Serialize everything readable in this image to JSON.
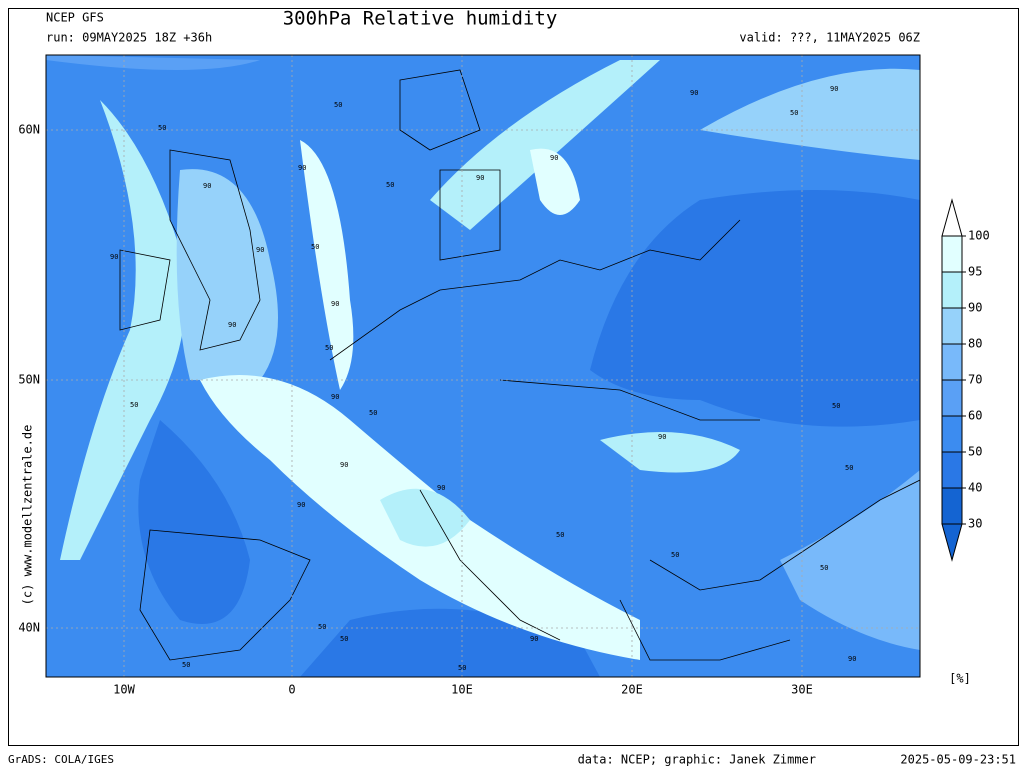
{
  "header": {
    "model": "NCEP GFS",
    "run": "run: 09MAY2025 18Z +36h",
    "title": "300hPa Relative humidity",
    "valid": "valid: ???, 11MAY2025 06Z"
  },
  "map": {
    "lat_labels": [
      "60N",
      "50N",
      "40N"
    ],
    "lon_labels": [
      "10W",
      "0",
      "10E",
      "20E",
      "30E"
    ],
    "contour_labels": [
      "50",
      "90",
      "90",
      "50",
      "90",
      "50",
      "90",
      "90",
      "50",
      "90",
      "90",
      "50",
      "90",
      "50",
      "50",
      "90",
      "90",
      "90",
      "90",
      "50",
      "50",
      "90",
      "50",
      "50",
      "90",
      "50",
      "90",
      "50",
      "50",
      "50",
      "90",
      "50",
      "90",
      "50"
    ],
    "copyright": "(c) www.modellzentrale.de"
  },
  "colorbar": {
    "ticks": [
      30,
      40,
      50,
      60,
      70,
      80,
      90,
      95,
      100
    ],
    "colors": [
      "#1464d2",
      "#2a78e6",
      "#3c8cf0",
      "#5aa0f5",
      "#78b9fa",
      "#96d2fa",
      "#b4f0fa",
      "#e1ffff"
    ],
    "unit": "[%]"
  },
  "footer": {
    "left": "GrADS: COLA/IGES",
    "credit": "data: NCEP; graphic: Janek Zimmer",
    "timestamp": "2025-05-09-23:51"
  }
}
